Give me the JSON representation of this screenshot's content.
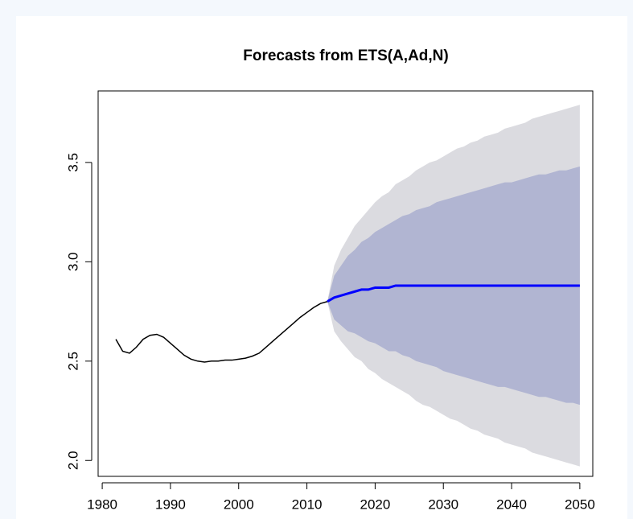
{
  "chart_data": {
    "type": "forecast",
    "title": "Forecasts from ETS(A,Ad,N)",
    "xlim": [
      1979.4,
      2051.9
    ],
    "ylim": [
      1.92,
      3.86
    ],
    "xticks": [
      1980,
      1990,
      2000,
      2010,
      2020,
      2030,
      2040,
      2050
    ],
    "yticks": [
      {
        "value": 2,
        "label": "2.0"
      },
      2.5,
      {
        "value": 3,
        "label": "3.0"
      },
      3.5
    ],
    "history": {
      "color": "#000000",
      "x": [
        1982,
        1983,
        1984,
        1985,
        1986,
        1987,
        1988,
        1989,
        1990,
        1991,
        1992,
        1993,
        1994,
        1995,
        1996,
        1997,
        1998,
        1999,
        2000,
        2001,
        2002,
        2003,
        2004,
        2005,
        2006,
        2007,
        2008,
        2009,
        2010,
        2011,
        2012,
        2013
      ],
      "values": [
        2.61,
        2.55,
        2.54,
        2.57,
        2.61,
        2.63,
        2.635,
        2.62,
        2.59,
        2.56,
        2.53,
        2.51,
        2.5,
        2.495,
        2.5,
        2.5,
        2.505,
        2.505,
        2.51,
        2.515,
        2.525,
        2.54,
        2.57,
        2.6,
        2.63,
        2.66,
        2.69,
        2.72,
        2.745,
        2.77,
        2.79,
        2.8
      ]
    },
    "forecast": {
      "color": "#0000ff",
      "color_80": "#b1b5d2",
      "color_95": "#dbdbe0",
      "x": [
        2013,
        2014,
        2015,
        2016,
        2017,
        2018,
        2019,
        2020,
        2021,
        2022,
        2023,
        2024,
        2025,
        2026,
        2027,
        2028,
        2029,
        2030,
        2031,
        2032,
        2033,
        2034,
        2035,
        2036,
        2037,
        2038,
        2039,
        2040,
        2041,
        2042,
        2043,
        2044,
        2045,
        2046,
        2047,
        2048,
        2049,
        2050
      ],
      "values": [
        2.8,
        2.82,
        2.83,
        2.84,
        2.85,
        2.86,
        2.86,
        2.87,
        2.87,
        2.87,
        2.88,
        2.88,
        2.88,
        2.88,
        2.88,
        2.88,
        2.88,
        2.88,
        2.88,
        2.88,
        2.88,
        2.88,
        2.88,
        2.88,
        2.88,
        2.88,
        2.88,
        2.88,
        2.88,
        2.88,
        2.88,
        2.88,
        2.88,
        2.88,
        2.88,
        2.88,
        2.88,
        2.88
      ],
      "hi95": [
        2.8,
        2.98,
        3.06,
        3.12,
        3.18,
        3.22,
        3.26,
        3.3,
        3.33,
        3.35,
        3.39,
        3.41,
        3.43,
        3.46,
        3.48,
        3.5,
        3.51,
        3.53,
        3.55,
        3.57,
        3.58,
        3.6,
        3.61,
        3.63,
        3.64,
        3.65,
        3.67,
        3.68,
        3.69,
        3.7,
        3.72,
        3.73,
        3.74,
        3.75,
        3.76,
        3.77,
        3.78,
        3.79
      ],
      "lo95": [
        2.8,
        2.65,
        2.6,
        2.56,
        2.52,
        2.5,
        2.46,
        2.44,
        2.41,
        2.39,
        2.37,
        2.35,
        2.33,
        2.3,
        2.28,
        2.27,
        2.25,
        2.23,
        2.21,
        2.2,
        2.18,
        2.16,
        2.15,
        2.13,
        2.12,
        2.11,
        2.09,
        2.08,
        2.07,
        2.06,
        2.04,
        2.03,
        2.02,
        2.01,
        2.0,
        1.99,
        1.98,
        1.97
      ],
      "hi80": [
        2.8,
        2.93,
        2.98,
        3.03,
        3.06,
        3.1,
        3.12,
        3.15,
        3.17,
        3.19,
        3.21,
        3.23,
        3.24,
        3.26,
        3.27,
        3.28,
        3.3,
        3.31,
        3.32,
        3.33,
        3.34,
        3.35,
        3.36,
        3.37,
        3.38,
        3.39,
        3.4,
        3.4,
        3.41,
        3.42,
        3.43,
        3.44,
        3.44,
        3.45,
        3.46,
        3.46,
        3.47,
        3.48
      ],
      "lo80": [
        2.8,
        2.71,
        2.68,
        2.65,
        2.64,
        2.62,
        2.6,
        2.59,
        2.57,
        2.55,
        2.55,
        2.53,
        2.52,
        2.5,
        2.49,
        2.48,
        2.47,
        2.45,
        2.44,
        2.43,
        2.42,
        2.41,
        2.4,
        2.39,
        2.38,
        2.37,
        2.37,
        2.36,
        2.35,
        2.34,
        2.33,
        2.32,
        2.32,
        2.31,
        2.3,
        2.29,
        2.29,
        2.28
      ]
    }
  }
}
